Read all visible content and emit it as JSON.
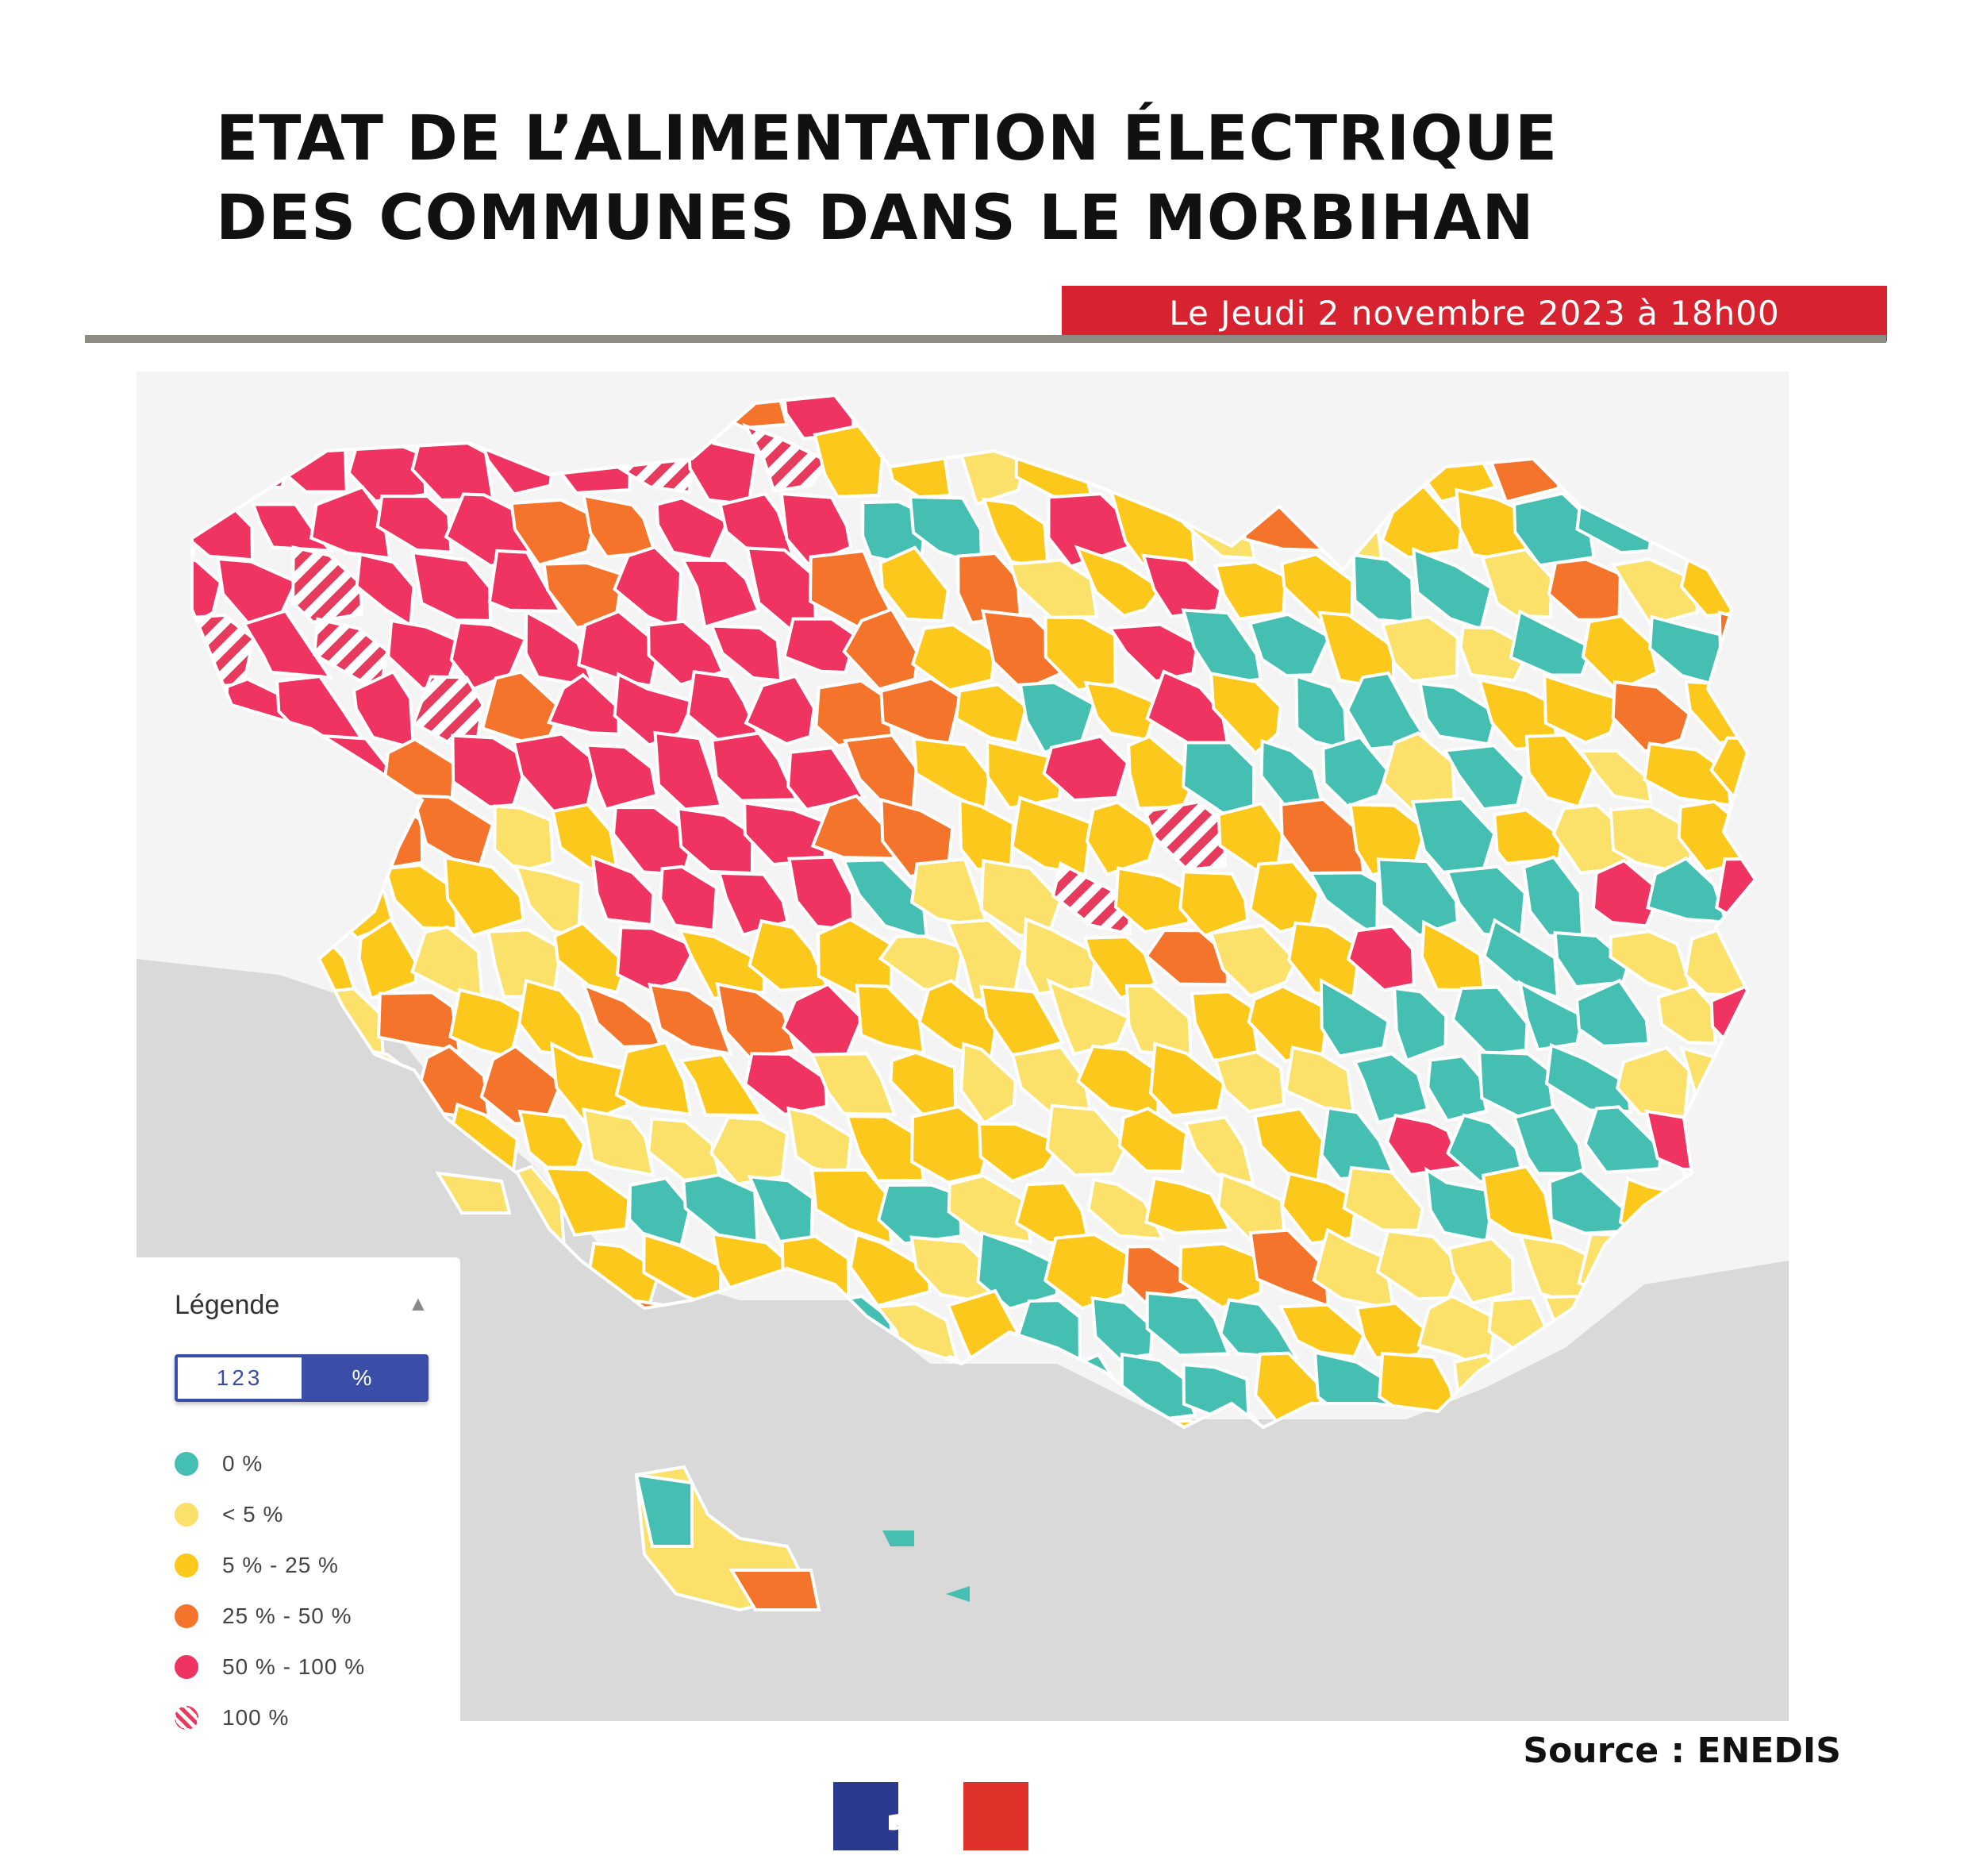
{
  "title_lines": [
    "ETAT DE L’ALIMENTATION ÉLECTRIQUE",
    "DES COMMUNES DANS LE MORBIHAN"
  ],
  "date_text": "Le Jeudi 2 novembre  2023 à 18h00",
  "source_text": "Source : ENEDIS",
  "colors": {
    "zero": "#45bfb1",
    "lt5": "#fbe06a",
    "p5_25": "#fcc81c",
    "p25_50": "#f3742a",
    "p50_100": "#ef3461",
    "hatch": "#e63b5c",
    "sea": "#d9d9d9",
    "land": "#f4f4f4",
    "accent": "#d6232f"
  },
  "legend": {
    "title": "Légende",
    "toggle": [
      "123",
      "%"
    ],
    "items": [
      {
        "label": "0 %",
        "color": "#45bfb1"
      },
      {
        "label": "< 5 %",
        "color": "#fbe06a"
      },
      {
        "label": "5 % - 25 %",
        "color": "#fcc81c"
      },
      {
        "label": "25 % - 50 %",
        "color": "#f3742a"
      },
      {
        "label": "50 % - 100 %",
        "color": "#ef3461"
      },
      {
        "label": "100 %",
        "color": "hatch"
      }
    ]
  },
  "icons": {
    "legend_collapse": "chevron-up-icon",
    "logo": "marianne-logo-icon"
  }
}
